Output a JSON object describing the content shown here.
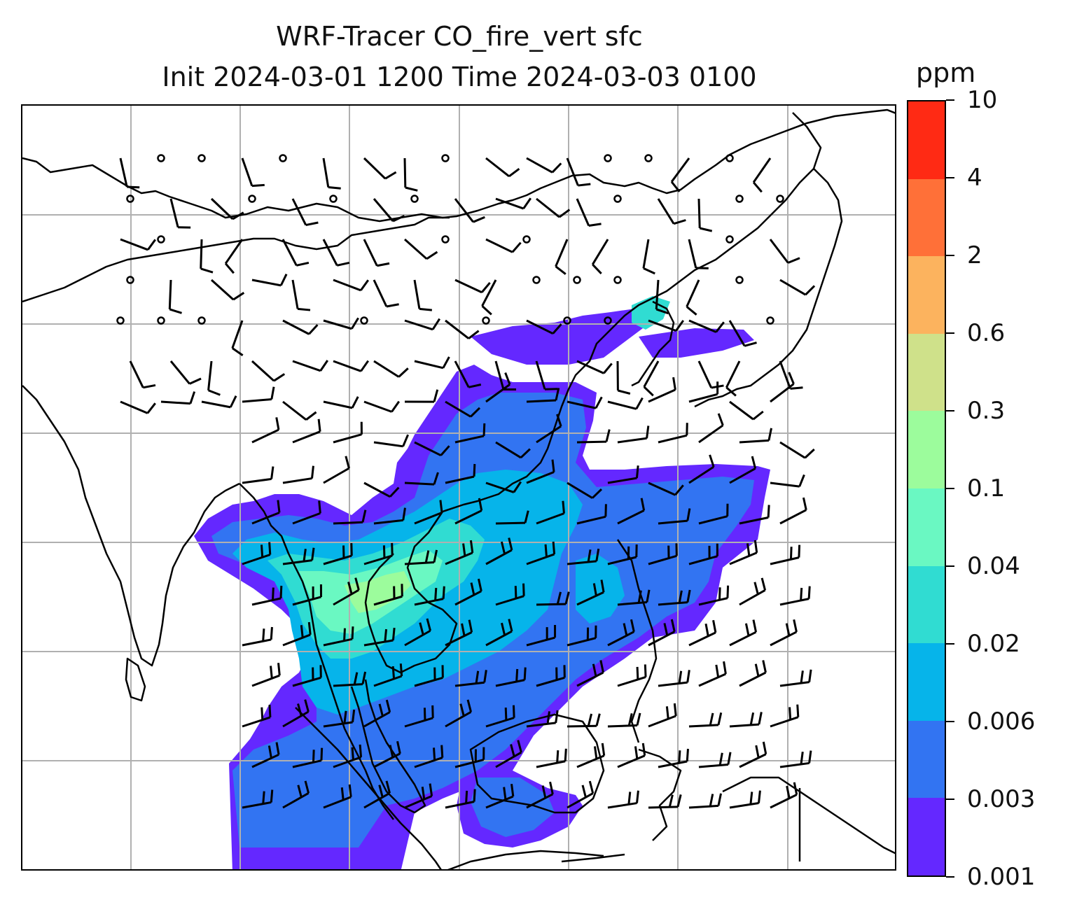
{
  "title": {
    "line1": "WRF-Tracer CO_fire_vert sfc",
    "line2": "Init 2024-03-01 1200 Time 2024-03-03 0100"
  },
  "colorbar": {
    "unit": "ppm",
    "levels": [
      "0.001",
      "0.003",
      "0.006",
      "0.02",
      "0.04",
      "0.1",
      "0.3",
      "0.6",
      "2",
      "4",
      "10"
    ],
    "colors": [
      "#6428ff",
      "#3274f2",
      "#06b4ea",
      "#30dcd2",
      "#6af8c2",
      "#9cfc9c",
      "#cfe18a",
      "#fcb35e",
      "#ff7038",
      "#ff2a14"
    ]
  },
  "map": {
    "gridlines": true,
    "grid_color": "#b0b0b0",
    "coastline_color": "#000000",
    "wind_barb_color": "#000000"
  }
}
